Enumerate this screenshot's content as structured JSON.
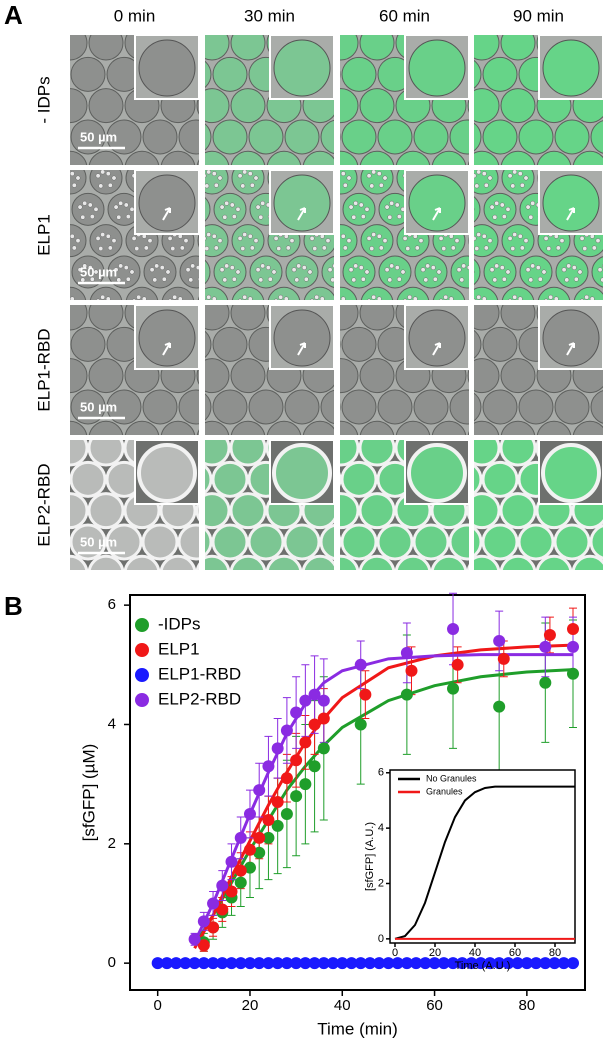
{
  "panel_a": {
    "label": "A",
    "columns": [
      "0 min",
      "30 min",
      "60 min",
      "90 min"
    ],
    "rows": [
      "- IDPs",
      "ELP1",
      "ELP1-RBD",
      "ELP2-RBD"
    ],
    "scale_bar": "50 µm"
  },
  "chart_data": [
    {
      "type": "scatter",
      "panel_label": "B",
      "xlabel": "Time (min)",
      "ylabel": "[sfGFP] (µM)",
      "xlim": [
        -6,
        92.6
      ],
      "ylim": [
        -0.45,
        6.17
      ],
      "xticks": [
        0,
        20,
        40,
        60,
        80
      ],
      "yticks": [
        0,
        2,
        4,
        6
      ],
      "legend": "upper left",
      "series": [
        {
          "name": "-IDPs",
          "color": "#1f9e2a",
          "x": [
            10,
            12,
            14,
            16,
            18,
            20,
            22,
            24,
            26,
            28,
            30,
            32,
            34,
            36,
            44,
            54,
            64,
            74,
            84,
            90
          ],
          "values": [
            0.35,
            0.6,
            0.85,
            1.1,
            1.35,
            1.6,
            1.85,
            2.1,
            2.3,
            2.5,
            2.8,
            3.0,
            3.3,
            3.6,
            4.0,
            4.5,
            4.6,
            4.3,
            4.7,
            4.85
          ],
          "errors": [
            0.15,
            0.2,
            0.25,
            0.3,
            0.4,
            0.5,
            0.6,
            0.7,
            0.8,
            0.9,
            1.0,
            1.0,
            1.1,
            1.2,
            1.0,
            1.0,
            1.0,
            1.1,
            1.0,
            0.9
          ],
          "fit": {
            "x": [
              8,
              12,
              16,
              20,
              24,
              28,
              32,
              36,
              40,
              50,
              60,
              70,
              80,
              90
            ],
            "values": [
              0.3,
              0.8,
              1.35,
              1.9,
              2.4,
              2.9,
              3.3,
              3.65,
              3.95,
              4.4,
              4.65,
              4.8,
              4.88,
              4.92
            ]
          }
        },
        {
          "name": "ELP1",
          "color": "#f01818",
          "x": [
            10,
            12,
            14,
            16,
            18,
            20,
            22,
            24,
            26,
            28,
            30,
            32,
            34,
            36,
            45,
            55,
            65,
            75,
            85,
            90
          ],
          "values": [
            0.3,
            0.6,
            0.9,
            1.2,
            1.55,
            1.9,
            2.1,
            2.4,
            2.7,
            3.1,
            3.4,
            3.7,
            4.0,
            4.1,
            4.5,
            4.9,
            5.0,
            5.1,
            5.5,
            5.6
          ],
          "errors": [
            0.1,
            0.15,
            0.2,
            0.25,
            0.3,
            0.3,
            0.35,
            0.4,
            0.4,
            0.4,
            0.45,
            0.45,
            0.5,
            0.5,
            0.4,
            0.4,
            0.3,
            0.3,
            0.3,
            0.35
          ],
          "fit": {
            "x": [
              8,
              12,
              16,
              20,
              24,
              28,
              32,
              36,
              40,
              50,
              60,
              70,
              80,
              90
            ],
            "values": [
              0.25,
              0.8,
              1.45,
              2.05,
              2.65,
              3.2,
              3.7,
              4.1,
              4.45,
              4.95,
              5.15,
              5.25,
              5.3,
              5.33
            ]
          }
        },
        {
          "name": "ELP1-RBD",
          "color": "#1a1aff",
          "x": [
            0,
            2,
            4,
            6,
            8,
            10,
            12,
            14,
            16,
            18,
            20,
            22,
            24,
            26,
            28,
            30,
            32,
            34,
            36,
            38,
            40,
            42,
            44,
            46,
            48,
            50,
            52,
            54,
            56,
            58,
            60,
            62,
            64,
            66,
            68,
            70,
            72,
            74,
            76,
            78,
            80,
            82,
            84,
            86,
            88,
            90
          ],
          "values": [
            0,
            0,
            0,
            0,
            0,
            0,
            0,
            0,
            0,
            0,
            0,
            0,
            0,
            0,
            0,
            0,
            0,
            0,
            0,
            0,
            0,
            0,
            0,
            0,
            0,
            0,
            0,
            0,
            0,
            0,
            0,
            0,
            0,
            0,
            0,
            0,
            0,
            0,
            0,
            0,
            0,
            0,
            0,
            0,
            0,
            0
          ]
        },
        {
          "name": "ELP2-RBD",
          "color": "#8a2be2",
          "x": [
            8,
            10,
            12,
            14,
            16,
            18,
            20,
            22,
            24,
            26,
            28,
            30,
            32,
            34,
            36,
            44,
            54,
            64,
            74,
            84,
            90
          ],
          "values": [
            0.4,
            0.7,
            1.0,
            1.3,
            1.7,
            2.1,
            2.5,
            2.9,
            3.3,
            3.6,
            3.9,
            4.2,
            4.4,
            4.5,
            4.4,
            5.0,
            5.2,
            5.6,
            5.4,
            5.3,
            5.3
          ],
          "errors": [
            0.1,
            0.15,
            0.2,
            0.25,
            0.3,
            0.35,
            0.4,
            0.45,
            0.5,
            0.5,
            0.55,
            0.6,
            0.6,
            0.65,
            0.7,
            0.4,
            0.5,
            0.6,
            0.5,
            0.5,
            0.5
          ],
          "fit": {
            "x": [
              8,
              12,
              16,
              20,
              24,
              28,
              32,
              36,
              40,
              50,
              60,
              70,
              80,
              90
            ],
            "values": [
              0.35,
              1.0,
              1.75,
              2.5,
              3.2,
              3.85,
              4.35,
              4.7,
              4.9,
              5.1,
              5.15,
              5.17,
              5.17,
              5.17
            ]
          }
        }
      ]
    },
    {
      "type": "line",
      "xlabel": "Time (A.U.)",
      "ylabel": "[sfGFP] (A.U.)",
      "xlim": [
        -2.5,
        90
      ],
      "ylim": [
        -0.15,
        6.1
      ],
      "xticks": [
        0,
        20,
        40,
        60,
        80
      ],
      "yticks": [
        0,
        2,
        4,
        6
      ],
      "legend": "upper left",
      "series": [
        {
          "name": "No Granules",
          "color": "#000000",
          "x": [
            0,
            5,
            10,
            15,
            20,
            25,
            30,
            35,
            40,
            45,
            50,
            60,
            70,
            80,
            90
          ],
          "values": [
            0,
            0.1,
            0.5,
            1.3,
            2.4,
            3.5,
            4.4,
            5.0,
            5.3,
            5.45,
            5.5,
            5.5,
            5.5,
            5.5,
            5.5
          ]
        },
        {
          "name": "Granules",
          "color": "#f01818",
          "x": [
            0,
            90
          ],
          "values": [
            0,
            0
          ]
        }
      ]
    }
  ]
}
